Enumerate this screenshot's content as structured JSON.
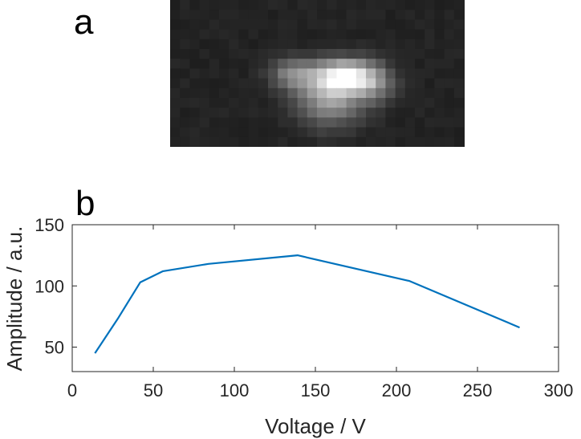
{
  "panels": {
    "a": "a",
    "b": "b"
  },
  "colors": {
    "series": "#0072BD",
    "axis": "#262626",
    "image_bg": "#212121"
  },
  "chart_data": {
    "type": "line",
    "title": "",
    "xlabel": "Voltage / V",
    "ylabel": "Amplitude / a.u.",
    "xlim": [
      0,
      300
    ],
    "ylim": [
      30,
      150
    ],
    "xticks": [
      0,
      50,
      100,
      150,
      200,
      250,
      300
    ],
    "yticks": [
      50,
      100,
      150
    ],
    "grid": false,
    "series": [
      {
        "x": [
          14,
          28,
          42,
          56,
          84,
          139,
          208,
          276
        ],
        "y": [
          45,
          73,
          103,
          112,
          118,
          125,
          104,
          66
        ]
      }
    ]
  }
}
